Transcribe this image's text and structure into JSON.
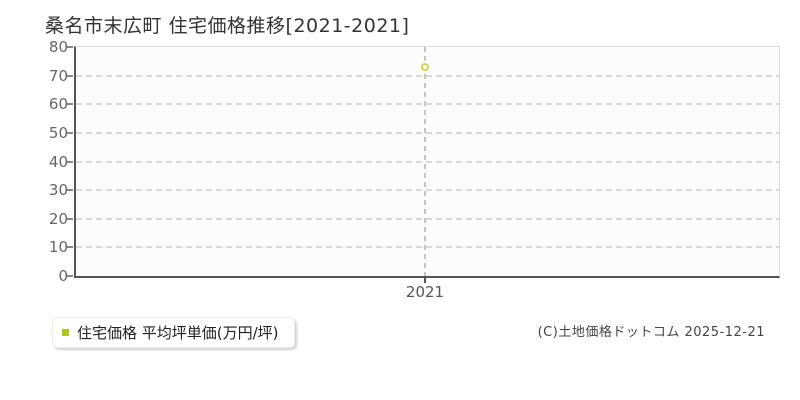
{
  "page": {
    "title": "桑名市末広町 住宅価格推移[2021-2021]"
  },
  "chart_data": {
    "type": "scatter",
    "title": "桑名市末広町 住宅価格推移[2021-2021]",
    "x": [
      "2021"
    ],
    "categories": [
      "2021"
    ],
    "series": [
      {
        "name": "住宅価格",
        "values": [
          73
        ]
      }
    ],
    "xlabel": "",
    "ylabel": "",
    "ylim": [
      0,
      80
    ],
    "yticks": [
      0,
      10,
      20,
      30,
      40,
      50,
      60,
      70,
      80
    ],
    "grid": "dashed horizontal gridlines at each ytick; dashed vertical gridline at x=2021",
    "legend_position": "bottom-left outside plot",
    "point_style": "open-circle"
  },
  "legend": {
    "label": "住宅価格 平均坪単価(万円/坪)"
  },
  "footer": {
    "copyright": "(C)土地価格ドットコム 2025-12-21"
  },
  "colors": {
    "series": "#a9c913",
    "point_stroke": "#c9d84a",
    "grid_line": "#d9d9d9",
    "axis_line": "#555555",
    "plot_background": "#fcfcfc",
    "light_border": "#dddddd",
    "title_text": "#333333",
    "tick_text": "#666666",
    "legend_text": "#222222",
    "copyright_text": "#444444"
  }
}
